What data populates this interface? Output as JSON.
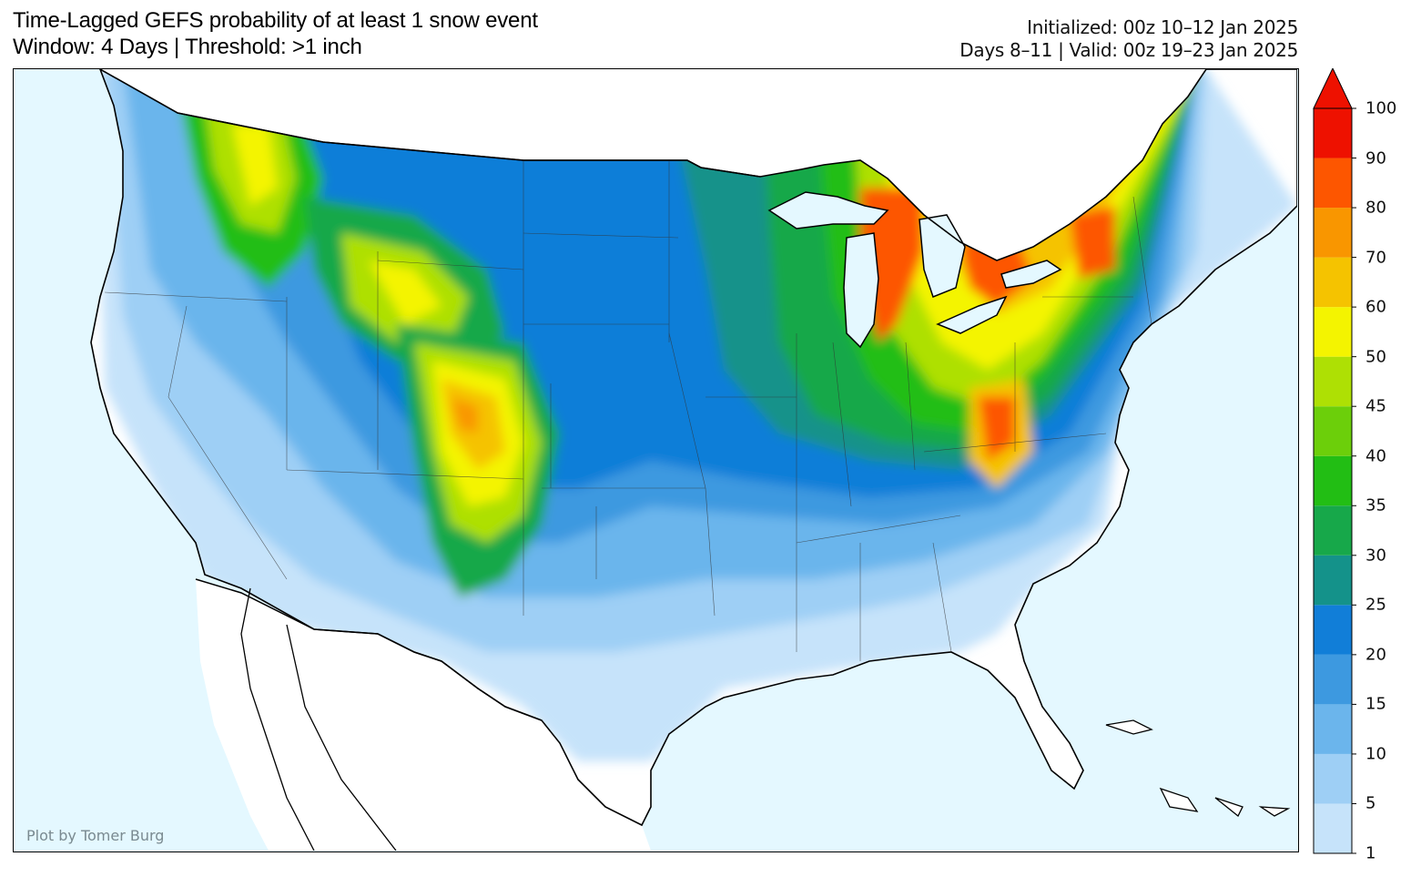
{
  "title": {
    "line1": "Time-Lagged GEFS probability of at least 1 snow event",
    "line2": "Window: 4 Days | Threshold: >1 inch"
  },
  "info": {
    "line1": "Initialized: 00z 10–12 Jan 2025",
    "line2": "Days 8–11 | Valid: 00z 19–23 Jan 2025"
  },
  "credit": "Plot by Tomer Burg",
  "colorbar": {
    "levels": [
      "1",
      "5",
      "10",
      "15",
      "20",
      "25",
      "30",
      "35",
      "40",
      "45",
      "50",
      "60",
      "70",
      "80",
      "90",
      "100"
    ],
    "colors": [
      "#c6e3fa",
      "#9ecff5",
      "#6bb5ec",
      "#3d99e0",
      "#117ed8",
      "#14928a",
      "#17a84a",
      "#22be14",
      "#6ccf0a",
      "#aee004",
      "#f4f400",
      "#f5c300",
      "#f99600",
      "#fd5600",
      "#ee1100"
    ],
    "extend": "max"
  },
  "map_colors": {
    "ocean": "#e4f8ff",
    "land_zero": "#ffffff",
    "border": "#000000"
  }
}
